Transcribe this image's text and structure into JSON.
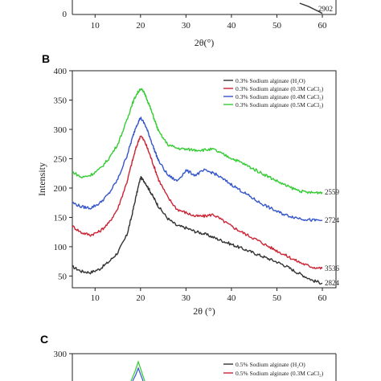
{
  "chart_data": [
    {
      "panel": "",
      "type": "line",
      "xlabel": "2θ(°)",
      "x_ticks": [
        10,
        20,
        30,
        40,
        50,
        60
      ],
      "xlim": [
        5,
        63
      ],
      "y_ticks": [
        0
      ],
      "end_labels": [
        "2902"
      ],
      "series": [
        {
          "name": "",
          "color": "#333333",
          "x": [
            55,
            57,
            58,
            59,
            60
          ],
          "y": [
            10,
            7,
            5,
            3,
            1
          ]
        }
      ]
    },
    {
      "panel": "B",
      "type": "line",
      "xlabel": "2θ (°)",
      "ylabel": "Intensity",
      "xlim": [
        5,
        63
      ],
      "ylim": [
        30,
        400
      ],
      "x_ticks": [
        10,
        20,
        30,
        40,
        50,
        60
      ],
      "y_ticks": [
        50,
        100,
        150,
        200,
        250,
        300,
        350,
        400
      ],
      "legend_placement": "top-right",
      "series": [
        {
          "name": "0.3% Sodium alginate (H₂O)",
          "color": "#333333",
          "end_label": "2824",
          "x": [
            5,
            7,
            9,
            11,
            13,
            15,
            17,
            18,
            19,
            20,
            21,
            22,
            23,
            24,
            26,
            28,
            30,
            32,
            34,
            36,
            38,
            40,
            42,
            44,
            46,
            48,
            50,
            52,
            54,
            56,
            58,
            60
          ],
          "y": [
            66,
            58,
            56,
            62,
            74,
            90,
            120,
            150,
            185,
            218,
            210,
            196,
            182,
            168,
            148,
            136,
            132,
            126,
            122,
            116,
            110,
            104,
            98,
            92,
            86,
            80,
            74,
            67,
            58,
            50,
            42,
            38
          ]
        },
        {
          "name": "0.3% Sodium alginate (0.3M CaCl₂)",
          "color": "#cc2233",
          "end_label": "3536",
          "x": [
            5,
            7,
            9,
            11,
            13,
            15,
            17,
            18,
            19,
            20,
            21,
            22,
            23,
            24,
            26,
            28,
            30,
            32,
            34,
            36,
            38,
            40,
            42,
            44,
            46,
            48,
            50,
            52,
            54,
            56,
            58,
            60
          ],
          "y": [
            135,
            124,
            120,
            126,
            140,
            165,
            210,
            240,
            268,
            290,
            278,
            258,
            236,
            214,
            184,
            164,
            158,
            152,
            152,
            155,
            145,
            135,
            126,
            118,
            110,
            101,
            93,
            85,
            77,
            70,
            65,
            63
          ]
        },
        {
          "name": "0.3% Sodium alginate (0.4M CaCl₂)",
          "color": "#3355cc",
          "end_label": "2724",
          "x": [
            5,
            7,
            9,
            11,
            13,
            15,
            17,
            18,
            19,
            20,
            21,
            22,
            23,
            24,
            26,
            28,
            30,
            32,
            34,
            36,
            38,
            40,
            42,
            44,
            46,
            48,
            50,
            52,
            54,
            56,
            58,
            60
          ],
          "y": [
            175,
            168,
            166,
            174,
            190,
            215,
            255,
            280,
            305,
            320,
            308,
            288,
            266,
            246,
            222,
            212,
            230,
            222,
            230,
            226,
            216,
            206,
            196,
            186,
            176,
            168,
            160,
            154,
            150,
            147,
            145,
            145
          ]
        },
        {
          "name": "0.3% Sodium alginate (0.5M CaCl₂)",
          "color": "#33cc33",
          "end_label": "2559",
          "x": [
            5,
            7,
            9,
            11,
            13,
            15,
            17,
            18,
            19,
            20,
            21,
            22,
            23,
            24,
            26,
            28,
            30,
            32,
            34,
            36,
            38,
            40,
            42,
            44,
            46,
            48,
            50,
            52,
            54,
            56,
            58,
            60
          ],
          "y": [
            228,
            218,
            222,
            232,
            250,
            275,
            315,
            340,
            358,
            370,
            360,
            340,
            318,
            296,
            274,
            268,
            266,
            265,
            265,
            266,
            258,
            251,
            244,
            236,
            228,
            220,
            212,
            204,
            198,
            193,
            192,
            193
          ]
        }
      ]
    },
    {
      "panel": "C",
      "type": "line",
      "ylim": [
        0,
        300
      ],
      "y_ticks": [
        300
      ],
      "legend_placement": "top-right",
      "series": [
        {
          "name": "0.5% Sodium alginate (H₂O)",
          "color": "#333333",
          "x": [],
          "y": []
        },
        {
          "name": "0.5% Sodium alginate (0.3M CaCl₂)",
          "color": "#cc2233",
          "x": [],
          "y": []
        }
      ]
    }
  ]
}
